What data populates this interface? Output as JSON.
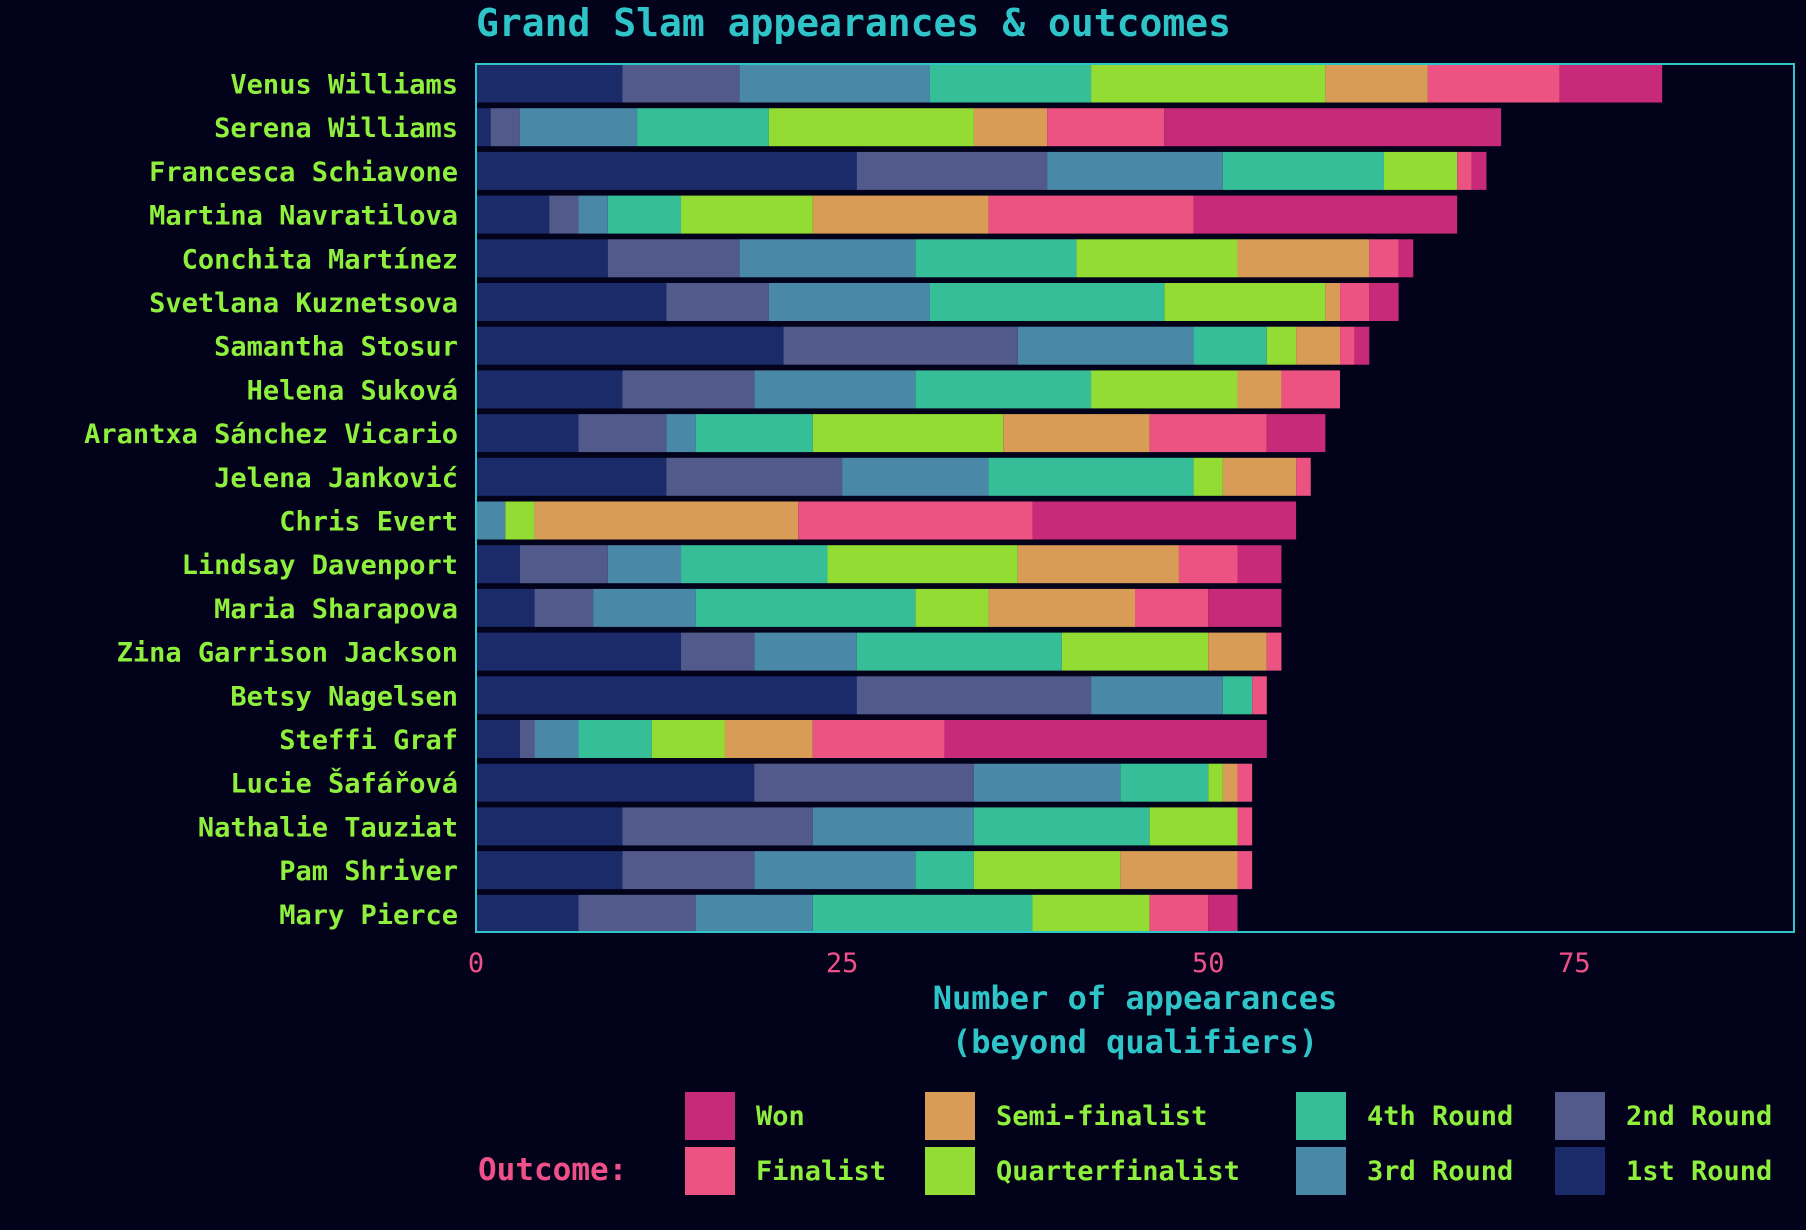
{
  "chart_data": {
    "type": "bar",
    "orientation": "horizontal",
    "stacked": true,
    "title": "Grand Slam appearances & outcomes",
    "xlabel": [
      "Number of appearances",
      "(beyond qualifiers)"
    ],
    "xlim": [
      0,
      90
    ],
    "xticks": [
      0,
      25,
      50,
      75
    ],
    "categories": [
      "Venus Williams",
      "Serena Williams",
      "Francesca Schiavone",
      "Martina Navratilova",
      "Conchita Martínez",
      "Svetlana Kuznetsova",
      "Samantha Stosur",
      "Helena Suková",
      "Arantxa Sánchez Vicario",
      "Jelena Janković",
      "Chris Evert",
      "Lindsay Davenport",
      "Maria Sharapova",
      "Zina Garrison Jackson",
      "Betsy Nagelsen",
      "Steffi Graf",
      "Lucie Šafářová",
      "Nathalie Tauziat",
      "Pam Shriver",
      "Mary Pierce"
    ],
    "series": [
      {
        "name": "1st Round",
        "color": "#1b2a68",
        "values": [
          10,
          1,
          26,
          5,
          9,
          13,
          21,
          10,
          7,
          13,
          0,
          3,
          4,
          14,
          26,
          3,
          19,
          10,
          10,
          7
        ]
      },
      {
        "name": "2nd Round",
        "color": "#525a8c",
        "values": [
          8,
          2,
          13,
          2,
          9,
          7,
          16,
          9,
          6,
          12,
          0,
          6,
          4,
          5,
          16,
          1,
          15,
          13,
          9,
          8
        ]
      },
      {
        "name": "3rd Round",
        "color": "#4a88a8",
        "values": [
          13,
          8,
          12,
          2,
          12,
          11,
          12,
          11,
          2,
          10,
          2,
          5,
          7,
          7,
          9,
          3,
          10,
          11,
          11,
          8
        ]
      },
      {
        "name": "4th Round",
        "color": "#36be98",
        "values": [
          11,
          9,
          11,
          5,
          11,
          16,
          5,
          12,
          8,
          14,
          0,
          10,
          15,
          14,
          2,
          5,
          6,
          12,
          4,
          15
        ]
      },
      {
        "name": "Quarterfinalist",
        "color": "#92dc34",
        "values": [
          16,
          14,
          5,
          9,
          11,
          11,
          2,
          10,
          13,
          2,
          2,
          13,
          5,
          10,
          0,
          5,
          1,
          6,
          10,
          8
        ]
      },
      {
        "name": "Semi-finalist",
        "color": "#d89c56",
        "values": [
          7,
          5,
          0,
          12,
          9,
          1,
          3,
          3,
          10,
          5,
          18,
          11,
          10,
          4,
          0,
          6,
          1,
          0,
          8,
          0
        ]
      },
      {
        "name": "Finalist",
        "color": "#ec5282",
        "values": [
          9,
          8,
          1,
          14,
          2,
          2,
          1,
          4,
          8,
          1,
          16,
          4,
          5,
          1,
          1,
          9,
          1,
          1,
          1,
          4
        ]
      },
      {
        "name": "Won",
        "color": "#c62a78",
        "values": [
          7,
          23,
          1,
          18,
          1,
          2,
          1,
          0,
          4,
          0,
          18,
          3,
          5,
          0,
          0,
          22,
          0,
          0,
          0,
          2
        ]
      }
    ],
    "legend": {
      "title": "Outcome:",
      "placement": "bottom",
      "order": [
        "Won",
        "Finalist",
        "Semi-finalist",
        "Quarterfinalist",
        "4th Round",
        "3rd Round",
        "2nd Round",
        "1st Round"
      ]
    },
    "grid": false
  },
  "colors": {
    "background": "#02021a",
    "panel_border": "#2ec4c8",
    "title": "#2ec4c8",
    "category_labels": "#8ef03c",
    "tick_labels": "#f0508a",
    "legend_title": "#f0508a",
    "legend_labels": "#8ef03c"
  }
}
